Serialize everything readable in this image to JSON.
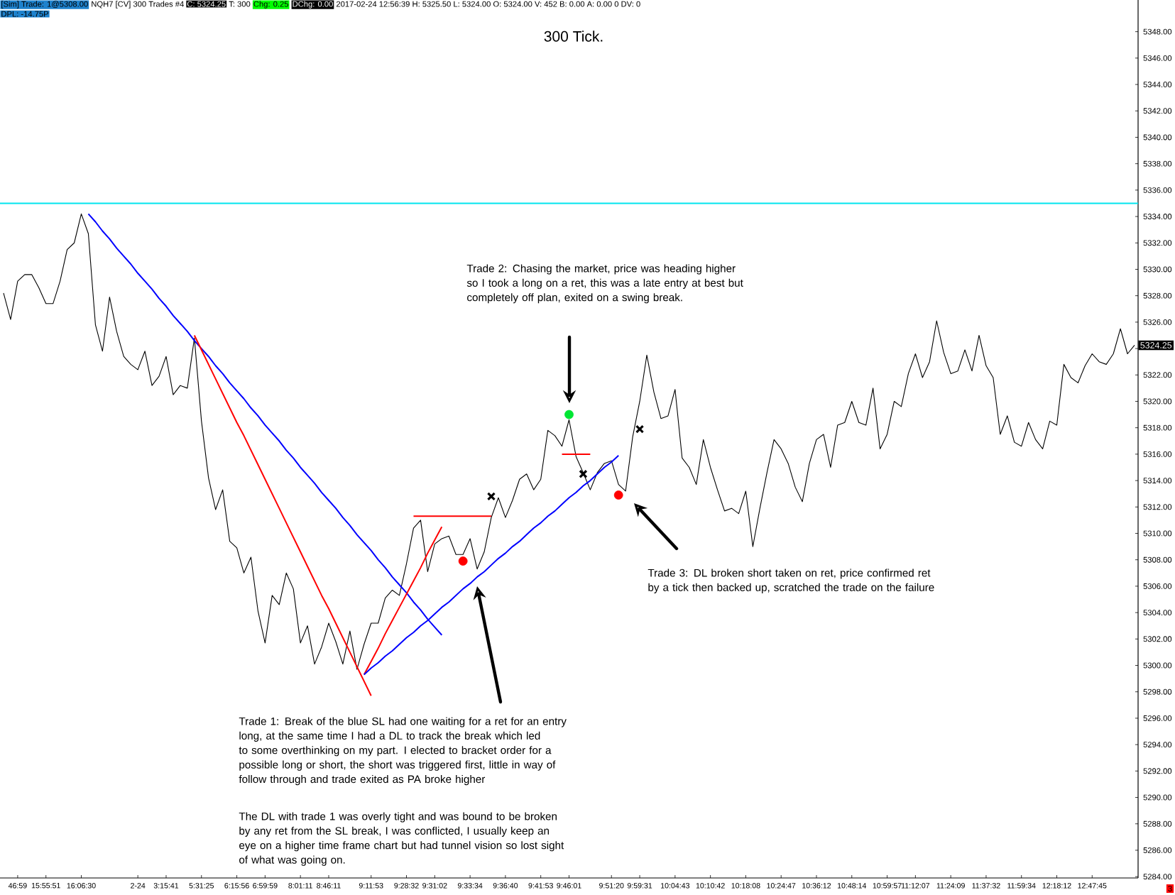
{
  "chart_data": {
    "type": "line",
    "title": "300 Tick.",
    "annotations": [
      "[Sim]  Trade: 1@5308.00",
      "NQH7 [CV]  300 Trades  #4",
      "C: 5324.25",
      "T: 300",
      "Chg: 0.25",
      "DChg: 0.00",
      "2017-02-24 12:56:39 H: 5325.50 L: 5324.00 O: 5324.00 V: 452 B: 0.00 A: 0.00 0 DV: 0",
      "DPL: -14.75P",
      "Trade 2:  Chasing the market, price was heading higher so I took a long on a ret, this was a late entry at best but completely off plan, exited on a swing break.",
      "Trade 1:  Break of the blue SL had one waiting for a ret for an entry long, at the same time I had a DL to track the break which led to some overthinking on my part.  I elected to bracket order for a possible long or short, the short was triggered first, little in way of follow through and trade exited as PA broke higher",
      "The DL with trade 1 was overly tight and was bound to be broken by any ret from the SL break, I was conflicted, I usually keep an eye on a higher time frame chart but had tunnel vision so lost sight of what was going on.",
      "Trade 3:  DL broken short taken on ret, price confirmed ret by a tick then backed up, scratched the trade on the failure",
      "5324.25",
      "3"
    ],
    "categories": [
      null,
      null,
      "46:59",
      null,
      null,
      null,
      "15:55:51",
      null,
      null,
      null,
      null,
      "16:06:30",
      null,
      null,
      null,
      null,
      null,
      null,
      null,
      "2-24",
      null,
      null,
      null,
      "3:15:41",
      null,
      null,
      null,
      null,
      "5:31:25",
      null,
      null,
      null,
      null,
      "6:15:56",
      null,
      null,
      null,
      "6:59:59",
      null,
      null,
      null,
      null,
      "8:01:11",
      null,
      null,
      null,
      "8:46:11",
      null,
      null,
      null,
      null,
      null,
      "9:11:53",
      null,
      null,
      null,
      null,
      "9:28:32",
      null,
      null,
      null,
      "9:31:02",
      null,
      null,
      null,
      null,
      "9:33:34",
      null,
      null,
      null,
      null,
      "9:36:40",
      null,
      null,
      null,
      null,
      "9:41:53",
      null,
      null,
      null,
      "9:46:01",
      null,
      null,
      null,
      null,
      null,
      "9:51:20",
      null,
      null,
      null,
      "9:59:31",
      null,
      null,
      null,
      null,
      "10:04:43",
      null,
      null,
      null,
      null,
      "10:10:42",
      null,
      null,
      null,
      null,
      "10:18:08",
      null,
      null,
      null,
      null,
      "10:24:47",
      null,
      null,
      null,
      null,
      "10:36:12",
      null,
      null,
      null,
      null,
      "10:48:14",
      null,
      null,
      null,
      null,
      "10:59:57",
      null,
      null,
      null,
      "11:12:07",
      null,
      null,
      null,
      null,
      "11:24:09",
      null,
      null,
      null,
      null,
      "11:37:32",
      null,
      null,
      null,
      null,
      "11:59:34",
      null,
      null,
      null,
      null,
      "12:18:12",
      null,
      null,
      null,
      null,
      "12:47:45",
      null,
      null,
      null,
      null,
      null,
      null
    ],
    "ylim": [
      5283.9,
      5350.4
    ],
    "yticks": [
      {
        "value": 5284,
        "label": "5284.00"
      },
      {
        "value": 5286,
        "label": "5286.00"
      },
      {
        "value": 5288,
        "label": "5288.00"
      },
      {
        "value": 5290,
        "label": "5290.00"
      },
      {
        "value": 5292,
        "label": "5292.00"
      },
      {
        "value": 5294,
        "label": "5294.00"
      },
      {
        "value": 5296,
        "label": "5296.00"
      },
      {
        "value": 5298,
        "label": "5298.00"
      },
      {
        "value": 5300,
        "label": "5300.00"
      },
      {
        "value": 5302,
        "label": "5302.00"
      },
      {
        "value": 5304,
        "label": "5304.00"
      },
      {
        "value": 5306,
        "label": "5306.00"
      },
      {
        "value": 5308,
        "label": "5308.00"
      },
      {
        "value": 5310,
        "label": "5310.00"
      },
      {
        "value": 5312,
        "label": "5312.00"
      },
      {
        "value": 5314,
        "label": "5314.00"
      },
      {
        "value": 5316,
        "label": "5316.00"
      },
      {
        "value": 5318,
        "label": "5318.00"
      },
      {
        "value": 5320,
        "label": "5320.00"
      },
      {
        "value": 5322,
        "label": "5322.00"
      },
      {
        "value": 5324,
        "label": null
      },
      {
        "value": 5326,
        "label": "5326.00"
      },
      {
        "value": 5328,
        "label": "5328.00"
      },
      {
        "value": 5330,
        "label": "5330.00"
      },
      {
        "value": 5332,
        "label": "5332.00"
      },
      {
        "value": 5334,
        "label": "5334.00"
      },
      {
        "value": 5336,
        "label": "5336.00"
      },
      {
        "value": 5338,
        "label": "5338.00"
      },
      {
        "value": 5340,
        "label": "5340.00"
      },
      {
        "value": 5342,
        "label": "5342.00"
      },
      {
        "value": 5344,
        "label": "5344.00"
      },
      {
        "value": 5346,
        "label": "5346.00"
      },
      {
        "value": 5348,
        "label": "5348.00"
      }
    ],
    "ref_lines": [
      {
        "axis": "y",
        "value": 5335,
        "color": "#00e5ee"
      }
    ],
    "series": [
      {
        "color": "#000000",
        "values": [
          5328.2,
          5326.2,
          5329.1,
          5329.6,
          5329.6,
          5328.6,
          5327.4,
          5327.4,
          5329.1,
          5331.5,
          5332.0,
          5334.2,
          5332.7,
          5325.8,
          5323.8,
          5327.9,
          5325.3,
          5323.4,
          5322.8,
          5322.4,
          5323.8,
          5321.2,
          5321.9,
          5323.4,
          5320.5,
          5321.2,
          5321.0,
          5324.8,
          5318.5,
          5314.2,
          5311.8,
          5313.3,
          5309.4,
          5308.9,
          5307.0,
          5308.2,
          5304.1,
          5301.7,
          5305.3,
          5304.6,
          5307.0,
          5305.8,
          5301.7,
          5303.0,
          5300.1,
          5301.4,
          5303.2,
          5301.8,
          5300.1,
          5302.6,
          5299.7,
          5301.6,
          5303.2,
          5303.2,
          5305.1,
          5305.7,
          5305.3,
          5307.7,
          5310.4,
          5311.0,
          5307.1,
          5309.2,
          5309.6,
          5309.8,
          5308.4,
          5308.4,
          5309.6,
          5307.3,
          5308.6,
          5311.2,
          5312.7,
          5311.2,
          5312.5,
          5314.1,
          5314.5,
          5313.3,
          5314.1,
          5317.8,
          5317.4,
          5316.6,
          5318.6,
          5315.8,
          5314.6,
          5313.3,
          5314.6,
          5315.3,
          5315.5,
          5313.7,
          5313.2,
          5317.3,
          5320.0,
          5323.5,
          5320.7,
          5318.7,
          5318.9,
          5320.9,
          5315.7,
          5315.0,
          5313.7,
          5317.1,
          5315.0,
          5313.3,
          5311.7,
          5311.9,
          5311.5,
          5313.2,
          5309.0,
          5311.9,
          5314.6,
          5317.1,
          5316.4,
          5315.3,
          5313.5,
          5312.4,
          5315.3,
          5317.1,
          5317.5,
          5315.0,
          5318.2,
          5318.4,
          5320.0,
          5318.4,
          5318.2,
          5321.0,
          5316.4,
          5317.5,
          5320.0,
          5319.6,
          5322.1,
          5323.6,
          5321.8,
          5323.0,
          5326.1,
          5323.7,
          5322.1,
          5322.3,
          5323.9,
          5322.3,
          5325.0,
          5322.7,
          5321.8,
          5317.5,
          5318.9,
          5316.9,
          5316.6,
          5318.4,
          5317.1,
          5316.4,
          5318.5,
          5318.2,
          5322.8,
          5321.8,
          5321.4,
          5322.7,
          5323.6,
          5323.0,
          5322.8,
          5323.6,
          5325.5,
          5323.6,
          5324.25
        ]
      },
      {
        "color": "#0000ff",
        "values": [
          null,
          null,
          null,
          null,
          null,
          null,
          null,
          null,
          null,
          null,
          null,
          null,
          5334.2,
          5333.6,
          5332.9,
          5332.3,
          5331.6,
          5331.0,
          5330.4,
          5329.7,
          5329.1,
          5328.5,
          5327.8,
          5327.2,
          5326.5,
          5325.9,
          5325.3,
          5324.6,
          5324.0,
          5323.4,
          5322.7,
          5322.1,
          5321.4,
          5320.8,
          5320.2,
          5319.5,
          5318.9,
          5318.2,
          5317.6,
          5317.0,
          5316.3,
          5315.7,
          5315.0,
          5314.4,
          5313.8,
          5313.1,
          5312.5,
          5311.9,
          5311.2,
          5310.6,
          5309.9,
          5309.3,
          5308.7,
          5308.0,
          5307.4,
          5306.7,
          5306.1,
          5305.5,
          5304.8,
          5304.2,
          5303.5,
          5302.9,
          5302.3,
          null,
          null,
          null,
          null,
          null,
          null,
          null,
          null,
          null,
          null,
          null,
          null,
          null,
          null,
          null,
          null,
          null,
          null,
          null,
          null,
          null,
          null,
          null,
          null,
          null,
          null,
          null,
          null,
          null,
          null,
          null,
          null,
          null,
          null,
          null,
          null,
          null,
          null,
          null,
          null,
          null,
          null,
          null,
          null,
          null,
          null,
          null,
          null,
          null,
          null,
          null,
          null,
          null,
          null,
          null,
          null,
          null,
          null,
          null,
          null,
          null,
          null,
          null,
          null,
          null,
          null,
          null,
          null,
          null,
          null,
          null,
          null,
          null,
          null,
          null,
          null,
          null,
          null,
          null,
          null,
          null,
          null,
          null,
          null,
          null,
          null,
          null,
          null,
          null,
          null,
          null,
          null,
          null,
          null,
          null,
          null,
          null,
          null
        ]
      },
      {
        "color": "#ff0000",
        "values": [
          null,
          null,
          null,
          null,
          null,
          null,
          null,
          null,
          null,
          null,
          null,
          null,
          null,
          null,
          null,
          null,
          null,
          null,
          null,
          null,
          null,
          null,
          null,
          null,
          null,
          null,
          null,
          5325.0,
          5323.9,
          5322.8,
          5321.7,
          5320.6,
          5319.5,
          5318.4,
          5317.4,
          5316.3,
          5315.2,
          5314.1,
          5313.0,
          5311.9,
          5310.8,
          5309.7,
          5308.6,
          5307.5,
          5306.4,
          5305.3,
          5304.3,
          5303.2,
          5302.1,
          5301.0,
          5299.9,
          5298.8,
          5297.7,
          null,
          null,
          null,
          null,
          null,
          null,
          null,
          null,
          null,
          null,
          null,
          null,
          null,
          null,
          null,
          null,
          null,
          null,
          null,
          null,
          null,
          null,
          null,
          null,
          null,
          null,
          null,
          null,
          null,
          null,
          null,
          null,
          null,
          null,
          null,
          null,
          null,
          null,
          null,
          null,
          null,
          null,
          null,
          null,
          null,
          null,
          null,
          null,
          null,
          null,
          null,
          null,
          null,
          null,
          null,
          null,
          null,
          null,
          null,
          null,
          null,
          null,
          null,
          null,
          null,
          null,
          null,
          null,
          null,
          null,
          null,
          null,
          null,
          null,
          null,
          null,
          null,
          null,
          null,
          null,
          null,
          null,
          null,
          null,
          null,
          null,
          null,
          null,
          null,
          null,
          null,
          null,
          null,
          null,
          null,
          null,
          null,
          null,
          null,
          null,
          null,
          null,
          null,
          null,
          null,
          null,
          null,
          null
        ]
      },
      {
        "color": "#ff0000",
        "values": [
          null,
          null,
          null,
          null,
          null,
          null,
          null,
          null,
          null,
          null,
          null,
          null,
          null,
          null,
          null,
          null,
          null,
          null,
          null,
          null,
          null,
          null,
          null,
          null,
          null,
          null,
          null,
          null,
          null,
          null,
          null,
          null,
          null,
          null,
          null,
          null,
          null,
          null,
          null,
          null,
          null,
          null,
          null,
          null,
          null,
          null,
          null,
          null,
          null,
          null,
          null,
          5299.3,
          5300.3,
          5301.3,
          5302.4,
          5303.4,
          5304.4,
          5305.4,
          5306.4,
          5307.4,
          5308.5,
          5309.5,
          5310.5,
          null,
          null,
          null,
          null,
          null,
          null,
          null,
          null,
          null,
          null,
          null,
          null,
          null,
          null,
          null,
          null,
          null,
          null,
          null,
          null,
          null,
          null,
          null,
          null,
          null,
          null,
          null,
          null,
          null,
          null,
          null,
          null,
          null,
          null,
          null,
          null,
          null,
          null,
          null,
          null,
          null,
          null,
          null,
          null,
          null,
          null,
          null,
          null,
          null,
          null,
          null,
          null,
          null,
          null,
          null,
          null,
          null,
          null,
          null,
          null,
          null,
          null,
          null,
          null,
          null,
          null,
          null,
          null,
          null,
          null,
          null,
          null,
          null,
          null,
          null,
          null,
          null,
          null,
          null,
          null,
          null,
          null,
          null,
          null,
          null,
          null,
          null,
          null,
          null,
          null,
          null,
          null,
          null,
          null,
          null,
          null,
          null,
          null
        ]
      },
      {
        "color": "#0000ff",
        "values": [
          null,
          null,
          null,
          null,
          null,
          null,
          null,
          null,
          null,
          null,
          null,
          null,
          null,
          null,
          null,
          null,
          null,
          null,
          null,
          null,
          null,
          null,
          null,
          null,
          null,
          null,
          null,
          null,
          null,
          null,
          null,
          null,
          null,
          null,
          null,
          null,
          null,
          null,
          null,
          null,
          null,
          null,
          null,
          null,
          null,
          null,
          null,
          null,
          null,
          null,
          null,
          5299.3,
          5299.8,
          5300.2,
          5300.7,
          5301.1,
          5301.6,
          5302.1,
          5302.5,
          5303.0,
          5303.4,
          5303.9,
          5304.4,
          5304.8,
          5305.3,
          5305.8,
          5306.2,
          5306.7,
          5307.1,
          5307.6,
          5308.1,
          5308.5,
          5309.0,
          5309.4,
          5309.9,
          5310.4,
          5310.8,
          5311.3,
          5311.7,
          5312.2,
          5312.7,
          5313.1,
          5313.6,
          5314.0,
          5314.5,
          5315.0,
          5315.4,
          5315.9,
          null,
          null,
          null,
          null,
          null,
          null,
          null,
          null,
          null,
          null,
          null,
          null,
          null,
          null,
          null,
          null,
          null,
          null,
          null,
          null,
          null,
          null,
          null,
          null,
          null,
          null,
          null,
          null,
          null,
          null,
          null,
          null,
          null,
          null,
          null,
          null,
          null,
          null,
          null,
          null,
          null,
          null,
          null,
          null,
          null,
          null,
          null,
          null,
          null,
          null,
          null,
          null,
          null,
          null,
          null,
          null,
          null,
          null,
          null,
          null,
          null,
          null,
          null,
          null,
          null,
          null,
          null,
          null,
          null,
          null,
          null,
          null,
          null
        ]
      },
      {
        "color": "#ff0000",
        "values": [
          null,
          null,
          null,
          null,
          null,
          null,
          null,
          null,
          null,
          null,
          null,
          null,
          null,
          null,
          null,
          null,
          null,
          null,
          null,
          null,
          null,
          null,
          null,
          null,
          null,
          null,
          null,
          null,
          null,
          null,
          null,
          null,
          null,
          null,
          null,
          null,
          null,
          null,
          null,
          null,
          null,
          null,
          null,
          null,
          null,
          null,
          null,
          null,
          null,
          null,
          null,
          null,
          null,
          null,
          null,
          null,
          null,
          null,
          5311.3,
          5311.3,
          5311.3,
          5311.3,
          5311.3,
          5311.3,
          5311.3,
          5311.3,
          5311.3,
          5311.3,
          5311.3,
          5311.3,
          null,
          null,
          null,
          null,
          null,
          null,
          null,
          null,
          null,
          null,
          null,
          null,
          null,
          null,
          null,
          null,
          null,
          null,
          null,
          null,
          null,
          null,
          null,
          null,
          null,
          null,
          null,
          null,
          null,
          null,
          null,
          null,
          null,
          null,
          null,
          null,
          null,
          null,
          null,
          null,
          null,
          null,
          null,
          null,
          null,
          null,
          null,
          null,
          null,
          null,
          null,
          null,
          null,
          null,
          null,
          null,
          null,
          null,
          null,
          null,
          null,
          null,
          null,
          null,
          null,
          null,
          null,
          null,
          null,
          null,
          null,
          null,
          null,
          null,
          null,
          null,
          null,
          null,
          null,
          null,
          null,
          null,
          null,
          null,
          null,
          null,
          null,
          null,
          null,
          null,
          null
        ]
      },
      {
        "color": "#ff0000",
        "values": [
          null,
          null,
          null,
          null,
          null,
          null,
          null,
          null,
          null,
          null,
          null,
          null,
          null,
          null,
          null,
          null,
          null,
          null,
          null,
          null,
          null,
          null,
          null,
          null,
          null,
          null,
          null,
          null,
          null,
          null,
          null,
          null,
          null,
          null,
          null,
          null,
          null,
          null,
          null,
          null,
          null,
          null,
          null,
          null,
          null,
          null,
          null,
          null,
          null,
          null,
          null,
          null,
          null,
          null,
          null,
          null,
          null,
          null,
          null,
          null,
          null,
          null,
          null,
          null,
          null,
          null,
          null,
          null,
          null,
          null,
          null,
          null,
          null,
          null,
          null,
          null,
          null,
          null,
          null,
          5316.0,
          5316.0,
          5316.0,
          5316.0,
          5316.0,
          null,
          null,
          null,
          null,
          null,
          null,
          null,
          null,
          null,
          null,
          null,
          null,
          null,
          null,
          null,
          null,
          null,
          null,
          null,
          null,
          null,
          null,
          null,
          null,
          null,
          null,
          null,
          null,
          null,
          null,
          null,
          null,
          null,
          null,
          null,
          null,
          null,
          null,
          null,
          null,
          null,
          null,
          null,
          null,
          null,
          null,
          null,
          null,
          null,
          null,
          null,
          null,
          null,
          null,
          null,
          null,
          null,
          null,
          null,
          null,
          null,
          null,
          null,
          null,
          null,
          null,
          null,
          null,
          null,
          null,
          null,
          null,
          null,
          null,
          null,
          null,
          null
        ]
      },
      {
        "type": "scatter",
        "marker": "circle",
        "color": "#00e633",
        "values": [
          null,
          null,
          null,
          null,
          null,
          null,
          null,
          null,
          null,
          null,
          null,
          null,
          null,
          null,
          null,
          null,
          null,
          null,
          null,
          null,
          null,
          null,
          null,
          null,
          null,
          null,
          null,
          null,
          null,
          null,
          null,
          null,
          null,
          null,
          null,
          null,
          null,
          null,
          null,
          null,
          null,
          null,
          null,
          null,
          null,
          null,
          null,
          null,
          null,
          null,
          null,
          null,
          null,
          null,
          null,
          null,
          null,
          null,
          null,
          null,
          null,
          null,
          null,
          null,
          null,
          null,
          null,
          null,
          null,
          null,
          null,
          null,
          null,
          null,
          null,
          null,
          null,
          null,
          null,
          null,
          5319.0,
          null,
          null,
          null,
          null,
          null,
          null,
          null,
          null,
          null,
          null,
          null,
          null,
          null,
          null,
          null,
          null,
          null,
          null,
          null,
          null,
          null,
          null,
          null,
          null,
          null,
          null,
          null,
          null,
          null,
          null,
          null,
          null,
          null,
          null,
          null,
          null,
          null,
          null,
          null,
          null,
          null,
          null,
          null,
          null,
          null,
          null,
          null,
          null,
          null,
          null,
          null,
          null,
          null,
          null,
          null,
          null,
          null,
          null,
          null,
          null,
          null,
          null,
          null,
          null,
          null,
          null,
          null,
          null,
          null,
          null,
          null,
          null,
          null,
          null,
          null,
          null,
          null,
          null,
          null,
          null
        ]
      },
      {
        "type": "scatter",
        "marker": "circle",
        "color": "#ff0000",
        "values": [
          null,
          null,
          null,
          null,
          null,
          null,
          null,
          null,
          null,
          null,
          null,
          null,
          null,
          null,
          null,
          null,
          null,
          null,
          null,
          null,
          null,
          null,
          null,
          null,
          null,
          null,
          null,
          null,
          null,
          null,
          null,
          null,
          null,
          null,
          null,
          null,
          null,
          null,
          null,
          null,
          null,
          null,
          null,
          null,
          null,
          null,
          null,
          null,
          null,
          null,
          null,
          null,
          null,
          null,
          null,
          null,
          null,
          null,
          null,
          null,
          null,
          null,
          null,
          null,
          null,
          5307.9,
          null,
          null,
          null,
          null,
          null,
          null,
          null,
          null,
          null,
          null,
          null,
          null,
          null,
          null,
          null,
          null,
          null,
          null,
          null,
          null,
          null,
          5312.9,
          null,
          null,
          null,
          null,
          null,
          null,
          null,
          null,
          null,
          null,
          null,
          null,
          null,
          null,
          null,
          null,
          null,
          null,
          null,
          null,
          null,
          null,
          null,
          null,
          null,
          null,
          null,
          null,
          null,
          null,
          null,
          null,
          null,
          null,
          null,
          null,
          null,
          null,
          null,
          null,
          null,
          null,
          null,
          null,
          null,
          null,
          null,
          null,
          null,
          null,
          null,
          null,
          null,
          null,
          null,
          null,
          null,
          null,
          null,
          null,
          null,
          null,
          null,
          null,
          null,
          null,
          null,
          null,
          null,
          null,
          null,
          null,
          null
        ]
      },
      {
        "type": "scatter",
        "marker": "cross",
        "color": "#000000",
        "values": [
          null,
          null,
          null,
          null,
          null,
          null,
          null,
          null,
          null,
          null,
          null,
          null,
          null,
          null,
          null,
          null,
          null,
          null,
          null,
          null,
          null,
          null,
          null,
          null,
          null,
          null,
          null,
          null,
          null,
          null,
          null,
          null,
          null,
          null,
          null,
          null,
          null,
          null,
          null,
          null,
          null,
          null,
          null,
          null,
          null,
          null,
          null,
          null,
          null,
          null,
          null,
          null,
          null,
          null,
          null,
          null,
          null,
          null,
          null,
          null,
          null,
          null,
          null,
          null,
          null,
          null,
          null,
          null,
          null,
          5312.8,
          null,
          null,
          null,
          null,
          null,
          null,
          null,
          null,
          null,
          null,
          null,
          null,
          5314.5,
          null,
          null,
          null,
          null,
          null,
          null,
          null,
          5317.9,
          null,
          null,
          null,
          null,
          null,
          null,
          null,
          null,
          null,
          null,
          null,
          null,
          null,
          null,
          null,
          null,
          null,
          null,
          null,
          null,
          null,
          null,
          null,
          null,
          null,
          null,
          null,
          null,
          null,
          null,
          null,
          null,
          null,
          null,
          null,
          null,
          null,
          null,
          null,
          null,
          null,
          null,
          null,
          null,
          null,
          null,
          null,
          null,
          null,
          null,
          null,
          null,
          null,
          null,
          null,
          null,
          null,
          null,
          null,
          null,
          null,
          null,
          null,
          null,
          null,
          null,
          null,
          null,
          null,
          null
        ]
      }
    ]
  }
}
